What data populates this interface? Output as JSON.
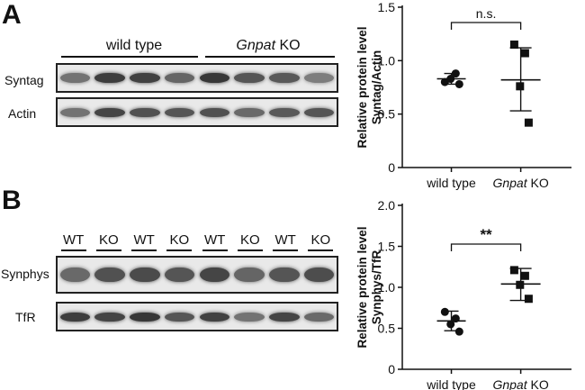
{
  "panel_a": {
    "letter": "A",
    "group_wt_label": "wild type",
    "group_ko_label_gene": "Gnpat",
    "group_ko_label_suffix": " KO",
    "rows": [
      {
        "label": "Syntag",
        "band_intensity": [
          0.55,
          0.82,
          0.8,
          0.62,
          0.85,
          0.7,
          0.68,
          0.5
        ]
      },
      {
        "label": "Actin",
        "band_intensity": [
          0.55,
          0.78,
          0.72,
          0.7,
          0.72,
          0.6,
          0.68,
          0.7
        ]
      }
    ]
  },
  "panel_b": {
    "letter": "B",
    "lanes": [
      "WT",
      "KO",
      "WT",
      "KO",
      "WT",
      "KO",
      "WT",
      "KO"
    ],
    "rows": [
      {
        "label": "Synphys",
        "band_intensity": [
          0.6,
          0.72,
          0.75,
          0.7,
          0.78,
          0.62,
          0.7,
          0.74
        ]
      },
      {
        "label": "TfR",
        "band_intensity": [
          0.82,
          0.78,
          0.85,
          0.7,
          0.8,
          0.55,
          0.78,
          0.6
        ]
      }
    ]
  },
  "chart_data": [
    {
      "type": "scatter",
      "title": "",
      "ylabel_line1": "Relative protein level",
      "ylabel_line2": "Syntag/Actin",
      "ylim": [
        0,
        1.5
      ],
      "yticks": [
        "0",
        "0.5",
        "1.0",
        "1.5"
      ],
      "yticks_values": [
        0,
        0.5,
        1.0,
        1.5
      ],
      "categories": [
        "wild type",
        "Gnpat KO"
      ],
      "category_gene": "Gnpat",
      "category_suffix": " KO",
      "grid": false,
      "series": [
        {
          "marker": "circle",
          "values": [
            0.8,
            0.88,
            0.83,
            0.78
          ],
          "mean": 0.83,
          "sd_low": 0.78,
          "sd_high": 0.88
        },
        {
          "marker": "square",
          "values": [
            1.15,
            1.07,
            0.76,
            0.42
          ],
          "mean": 0.82,
          "sd_low": 0.53,
          "sd_high": 1.12
        }
      ],
      "significance": "n.s."
    },
    {
      "type": "scatter",
      "title": "",
      "ylabel_line1": "Relative protein level",
      "ylabel_line2": "Synphys/TfR",
      "ylim": [
        0,
        2.0
      ],
      "yticks": [
        "0",
        "0.5",
        "1.0",
        "1.5",
        "2.0"
      ],
      "yticks_values": [
        0,
        0.5,
        1.0,
        1.5,
        2.0
      ],
      "categories": [
        "wild type",
        "Gnpat KO"
      ],
      "category_gene": "Gnpat",
      "category_suffix": " KO",
      "grid": false,
      "series": [
        {
          "marker": "circle",
          "values": [
            0.7,
            0.62,
            0.55,
            0.46
          ],
          "mean": 0.59,
          "sd_low": 0.47,
          "sd_high": 0.71
        },
        {
          "marker": "square",
          "values": [
            1.21,
            1.14,
            1.03,
            0.86
          ],
          "mean": 1.04,
          "sd_low": 0.84,
          "sd_high": 1.23
        }
      ],
      "significance": "**"
    }
  ]
}
